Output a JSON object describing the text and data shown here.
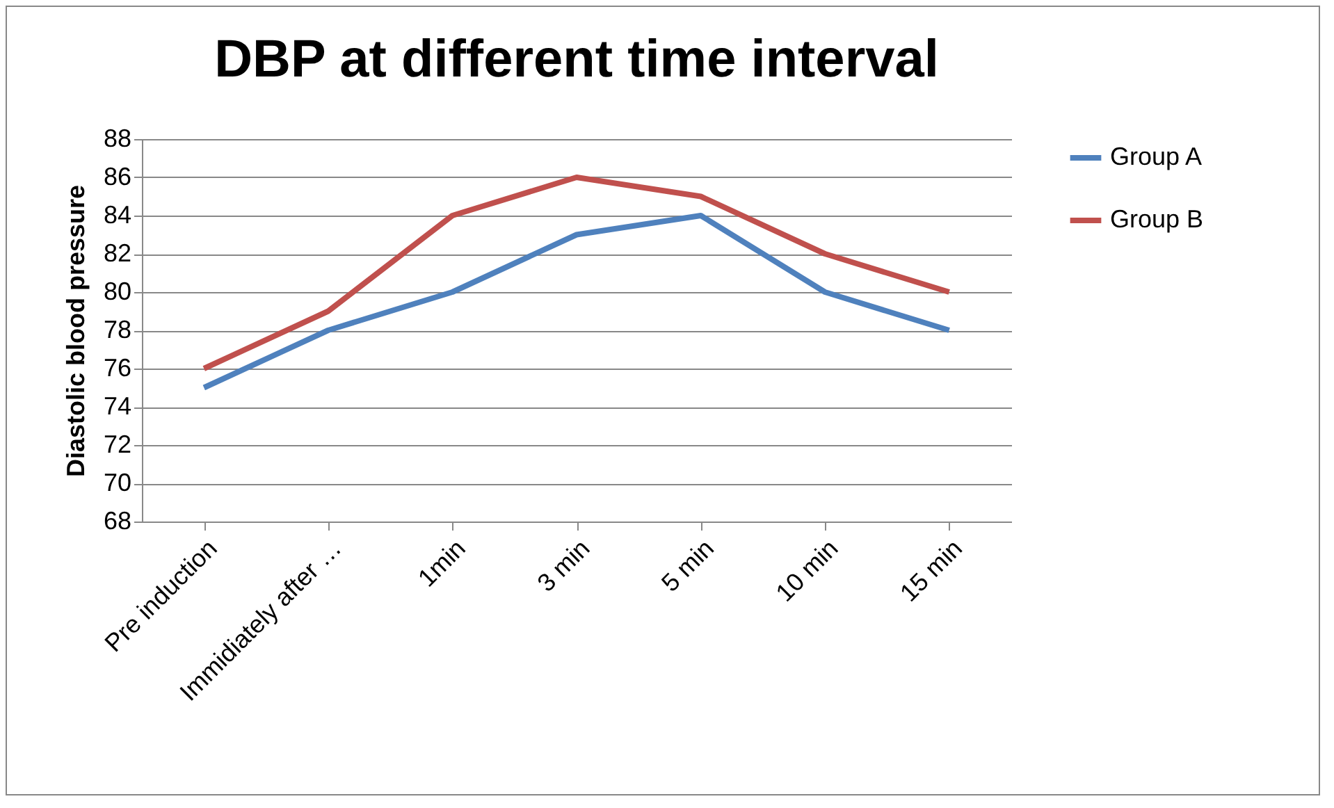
{
  "chart_data": {
    "type": "line",
    "title": "DBP at different time interval",
    "ylabel": "Diastolic blood pressure",
    "categories": [
      "Pre induction",
      "Immidiately after …",
      "1min",
      "3 min",
      "5 min",
      "10 min",
      "15 min"
    ],
    "series": [
      {
        "name": "Group A",
        "color": "#4f81bd",
        "values": [
          75,
          78,
          80,
          83,
          84,
          80,
          78
        ]
      },
      {
        "name": "Group B",
        "color": "#c0504d",
        "values": [
          76,
          79,
          84,
          86,
          85,
          82,
          80
        ]
      }
    ],
    "ylim": [
      68,
      88
    ],
    "yticks": [
      68,
      70,
      72,
      74,
      76,
      78,
      80,
      82,
      84,
      86,
      88
    ],
    "grid": "y",
    "legend": "right",
    "marker": "none",
    "line_style": "solid"
  }
}
